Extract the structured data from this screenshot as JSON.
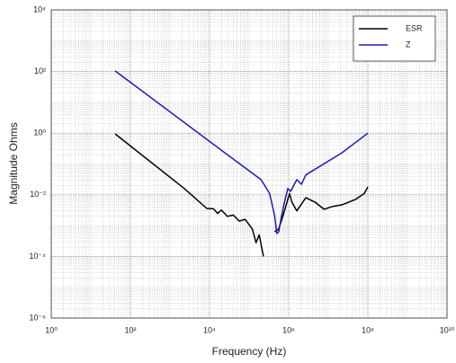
{
  "chart_data": {
    "type": "line",
    "xlabel": "Frequency (Hz)",
    "ylabel": "Magnitude Ohms",
    "xscale": "log",
    "yscale": "log",
    "xlim": [
      1,
      10000000000
    ],
    "ylim": [
      1e-06,
      10000
    ],
    "xticks": [
      {
        "value": 1,
        "label": "10⁰"
      },
      {
        "value": 100,
        "label": "10²"
      },
      {
        "value": 10000,
        "label": "10⁴"
      },
      {
        "value": 1000000,
        "label": "10⁶"
      },
      {
        "value": 100000000,
        "label": "10⁸"
      },
      {
        "value": 10000000000,
        "label": "10¹⁰"
      }
    ],
    "yticks": [
      {
        "value": 1e-06,
        "label": "10⁻⁶"
      },
      {
        "value": 0.0001,
        "label": "10⁻⁴"
      },
      {
        "value": 0.01,
        "label": "10⁻²"
      },
      {
        "value": 1,
        "label": "10⁰"
      },
      {
        "value": 100,
        "label": "10²"
      },
      {
        "value": 10000,
        "label": "10⁴"
      }
    ],
    "grid": true,
    "minor_grid": true,
    "legend": "upper right",
    "series": [
      {
        "name": "ESR",
        "color": "#000000",
        "x": [
          41,
          2300,
          8500,
          12600,
          16000,
          20000,
          28000,
          40000,
          56000,
          79000,
          120000,
          150000,
          180000,
          230000,
          260000,
          440000,
          560000,
          720000,
          1050000,
          1200000,
          1600000,
          2700000,
          4600000,
          7800000,
          13000000,
          22000000,
          48000000,
          81000000,
          100000000
        ],
        "values": [
          0.95,
          0.016,
          0.0036,
          0.0035,
          0.0025,
          0.0032,
          0.002,
          0.0022,
          0.0014,
          0.0016,
          0.00078,
          0.00028,
          0.0005,
          0.0001,
          null,
          0.00063,
          0.00078,
          0.0021,
          0.011,
          0.0058,
          0.003,
          0.008,
          0.0058,
          0.0034,
          0.0042,
          0.0047,
          0.007,
          0.011,
          0.018
        ]
      },
      {
        "name": "Z",
        "color": "#1c1cb4",
        "x": [
          41,
          69000,
          200000,
          330000,
          440000,
          500000,
          560000,
          660000,
          780000,
          950000,
          1120000,
          1600000,
          2100000,
          2700000,
          22000000,
          100000000
        ],
        "values": [
          105,
          0.085,
          0.031,
          0.011,
          0.0021,
          0.00055,
          0.00063,
          0.0021,
          0.0058,
          0.016,
          0.013,
          0.031,
          0.022,
          0.044,
          0.23,
          1.0
        ]
      }
    ]
  }
}
